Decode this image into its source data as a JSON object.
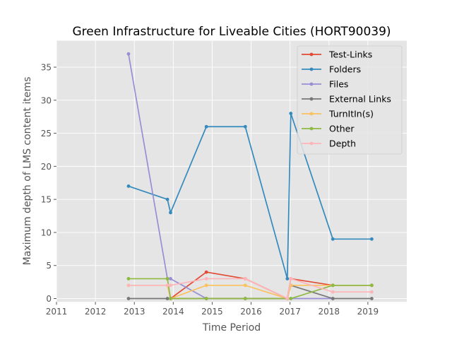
{
  "chart_data": {
    "type": "line",
    "title": "Green Infrastructure for Liveable Cities (HORT90039)",
    "xlabel": "Time Period",
    "ylabel": "Maximum depth of LMS content items",
    "xlim": [
      2011.0,
      2020.0
    ],
    "ylim": [
      -0.5,
      39.0
    ],
    "x_ticks": [
      2011,
      2012,
      2013,
      2014,
      2015,
      2016,
      2017,
      2018,
      2019
    ],
    "y_ticks": [
      0,
      5,
      10,
      15,
      20,
      25,
      30,
      35
    ],
    "grid": true,
    "legend_position": "top-right",
    "x": [
      2012.85,
      2013.85,
      2013.93,
      2014.85,
      2015.85,
      2016.93,
      2017.02,
      2018.1,
      2019.1
    ],
    "series": [
      {
        "name": "Test-Links",
        "color": "#E24A33",
        "values": [
          null,
          null,
          0,
          4,
          3,
          0,
          3,
          2,
          2
        ]
      },
      {
        "name": "Folders",
        "color": "#348ABD",
        "values": [
          17,
          15,
          13,
          26,
          26,
          3,
          28,
          9,
          9
        ]
      },
      {
        "name": "Files",
        "color": "#988ED5",
        "values": [
          37,
          3,
          3,
          0,
          0,
          0,
          0,
          0,
          null
        ]
      },
      {
        "name": "External Links",
        "color": "#777777",
        "values": [
          0,
          0,
          0,
          0,
          0,
          0,
          2,
          0,
          0
        ]
      },
      {
        "name": "TurnItIn(s)",
        "color": "#FBC15E",
        "values": [
          2,
          2,
          0,
          2,
          2,
          0,
          2,
          2,
          2
        ]
      },
      {
        "name": "Other",
        "color": "#8EBA42",
        "values": [
          3,
          3,
          0,
          0,
          0,
          0,
          0,
          2,
          2
        ]
      },
      {
        "name": "Depth",
        "color": "#FFB5B8",
        "values": [
          2,
          2,
          2,
          3,
          3,
          0,
          3,
          1,
          1
        ]
      }
    ]
  }
}
